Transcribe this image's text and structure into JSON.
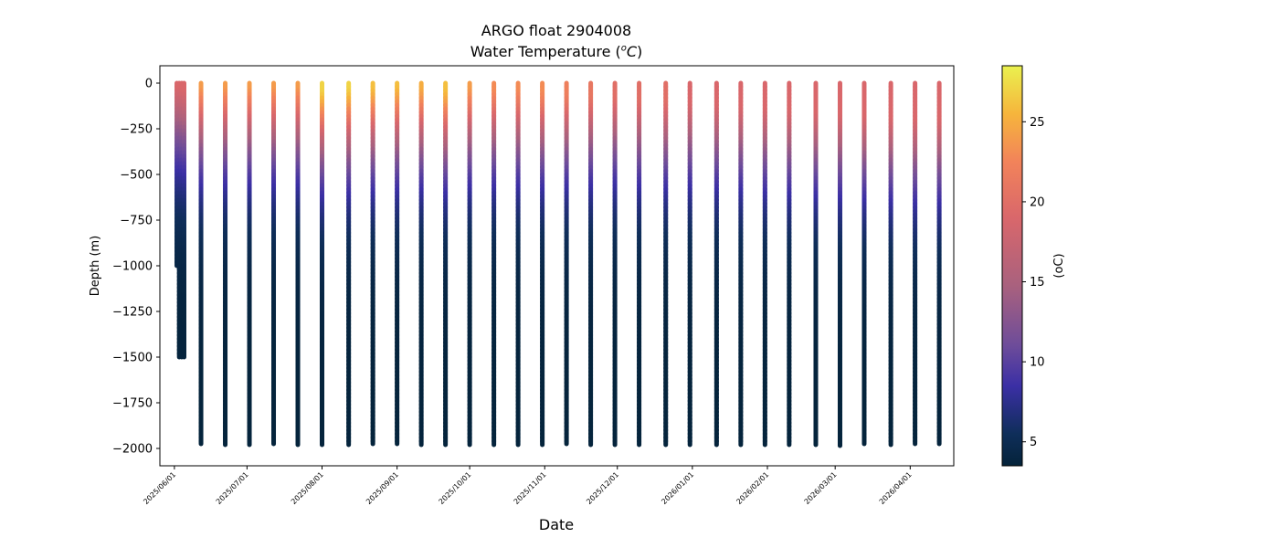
{
  "chart_data": {
    "type": "scatter",
    "title": "ARGO float 2904008",
    "subtitle_prefix": "Water Temperature (",
    "subtitle_unit_sup": "o",
    "subtitle_unit_main": "C",
    "subtitle_suffix": ")",
    "xlabel": "Date",
    "ylabel": "Depth (m)",
    "colorbar_label": "(oC)",
    "colormap": "thermal",
    "color_range": [
      3.5,
      28.5
    ],
    "colorbar_ticks": [
      5,
      10,
      15,
      20,
      25
    ],
    "y_ticks": [
      0,
      -250,
      -500,
      -750,
      -1000,
      -1250,
      -1500,
      -1750,
      -2000
    ],
    "y_tick_labels": [
      "0",
      "−250",
      "−500",
      "−750",
      "−1000",
      "−1250",
      "−1500",
      "−1750",
      "−2000"
    ],
    "x_tick_dates": [
      "2025-06-01",
      "2025-07-01",
      "2025-08-01",
      "2025-09-01",
      "2025-10-01",
      "2025-11-01",
      "2025-12-01",
      "2026-01-01",
      "2026-02-01",
      "2026-03-01",
      "2026-04-01"
    ],
    "x_tick_labels": [
      "2025/06/01",
      "2025/07/01",
      "2025/08/01",
      "2025/09/01",
      "2025/10/01",
      "2025/11/01",
      "2025/12/01",
      "2026/01/01",
      "2026/02/01",
      "2026/03/01",
      "2026/04/01"
    ],
    "xlim": [
      "2025-05-26",
      "2026-04-19"
    ],
    "ylim": [
      -2095,
      95
    ],
    "grid": false,
    "profiles": [
      {
        "date": "2025-06-02",
        "max_depth": 1000,
        "surface_temp": 19,
        "mixed_depth": 20
      },
      {
        "date": "2025-06-03",
        "max_depth": 1500,
        "surface_temp": 19,
        "mixed_depth": 20
      },
      {
        "date": "2025-06-04",
        "max_depth": 1500,
        "surface_temp": 19,
        "mixed_depth": 30
      },
      {
        "date": "2025-06-05",
        "max_depth": 1500,
        "surface_temp": 19,
        "mixed_depth": 40
      },
      {
        "date": "2025-06-12",
        "max_depth": 1975,
        "surface_temp": 24,
        "mixed_depth": 20
      },
      {
        "date": "2025-06-22",
        "max_depth": 1980,
        "surface_temp": 24,
        "mixed_depth": 20
      },
      {
        "date": "2025-07-02",
        "max_depth": 1980,
        "surface_temp": 24,
        "mixed_depth": 20
      },
      {
        "date": "2025-07-12",
        "max_depth": 1975,
        "surface_temp": 24,
        "mixed_depth": 20
      },
      {
        "date": "2025-07-22",
        "max_depth": 1980,
        "surface_temp": 24,
        "mixed_depth": 20
      },
      {
        "date": "2025-08-01",
        "max_depth": 1980,
        "surface_temp": 27,
        "mixed_depth": 40
      },
      {
        "date": "2025-08-12",
        "max_depth": 1980,
        "surface_temp": 27,
        "mixed_depth": 30
      },
      {
        "date": "2025-08-22",
        "max_depth": 1975,
        "surface_temp": 26,
        "mixed_depth": 30
      },
      {
        "date": "2025-09-01",
        "max_depth": 1975,
        "surface_temp": 26,
        "mixed_depth": 20
      },
      {
        "date": "2025-09-11",
        "max_depth": 1980,
        "surface_temp": 25,
        "mixed_depth": 30
      },
      {
        "date": "2025-09-21",
        "max_depth": 1980,
        "surface_temp": 26,
        "mixed_depth": 40
      },
      {
        "date": "2025-10-01",
        "max_depth": 1980,
        "surface_temp": 24,
        "mixed_depth": 30
      },
      {
        "date": "2025-10-11",
        "max_depth": 1980,
        "surface_temp": 23,
        "mixed_depth": 40
      },
      {
        "date": "2025-10-21",
        "max_depth": 1980,
        "surface_temp": 23,
        "mixed_depth": 40
      },
      {
        "date": "2025-10-31",
        "max_depth": 1980,
        "surface_temp": 23,
        "mixed_depth": 50
      },
      {
        "date": "2025-11-10",
        "max_depth": 1975,
        "surface_temp": 22,
        "mixed_depth": 60
      },
      {
        "date": "2025-11-20",
        "max_depth": 1980,
        "surface_temp": 21,
        "mixed_depth": 70
      },
      {
        "date": "2025-11-30",
        "max_depth": 1980,
        "surface_temp": 20,
        "mixed_depth": 80
      },
      {
        "date": "2025-12-10",
        "max_depth": 1980,
        "surface_temp": 20,
        "mixed_depth": 90
      },
      {
        "date": "2025-12-21",
        "max_depth": 1980,
        "surface_temp": 20,
        "mixed_depth": 100
      },
      {
        "date": "2025-12-31",
        "max_depth": 1980,
        "surface_temp": 19,
        "mixed_depth": 110
      },
      {
        "date": "2026-01-11",
        "max_depth": 1980,
        "surface_temp": 19,
        "mixed_depth": 120
      },
      {
        "date": "2026-01-21",
        "max_depth": 1980,
        "surface_temp": 19,
        "mixed_depth": 130
      },
      {
        "date": "2026-01-31",
        "max_depth": 1980,
        "surface_temp": 19,
        "mixed_depth": 140
      },
      {
        "date": "2026-02-10",
        "max_depth": 1980,
        "surface_temp": 19,
        "mixed_depth": 150
      },
      {
        "date": "2026-02-21",
        "max_depth": 1980,
        "surface_temp": 19,
        "mixed_depth": 160
      },
      {
        "date": "2026-03-03",
        "max_depth": 1985,
        "surface_temp": 19,
        "mixed_depth": 170
      },
      {
        "date": "2026-03-13",
        "max_depth": 1975,
        "surface_temp": 19,
        "mixed_depth": 180
      },
      {
        "date": "2026-03-24",
        "max_depth": 1980,
        "surface_temp": 19,
        "mixed_depth": 190
      },
      {
        "date": "2026-04-03",
        "max_depth": 1975,
        "surface_temp": 19,
        "mixed_depth": 200
      },
      {
        "date": "2026-04-13",
        "max_depth": 1975,
        "surface_temp": 19,
        "mixed_depth": 200
      }
    ]
  }
}
